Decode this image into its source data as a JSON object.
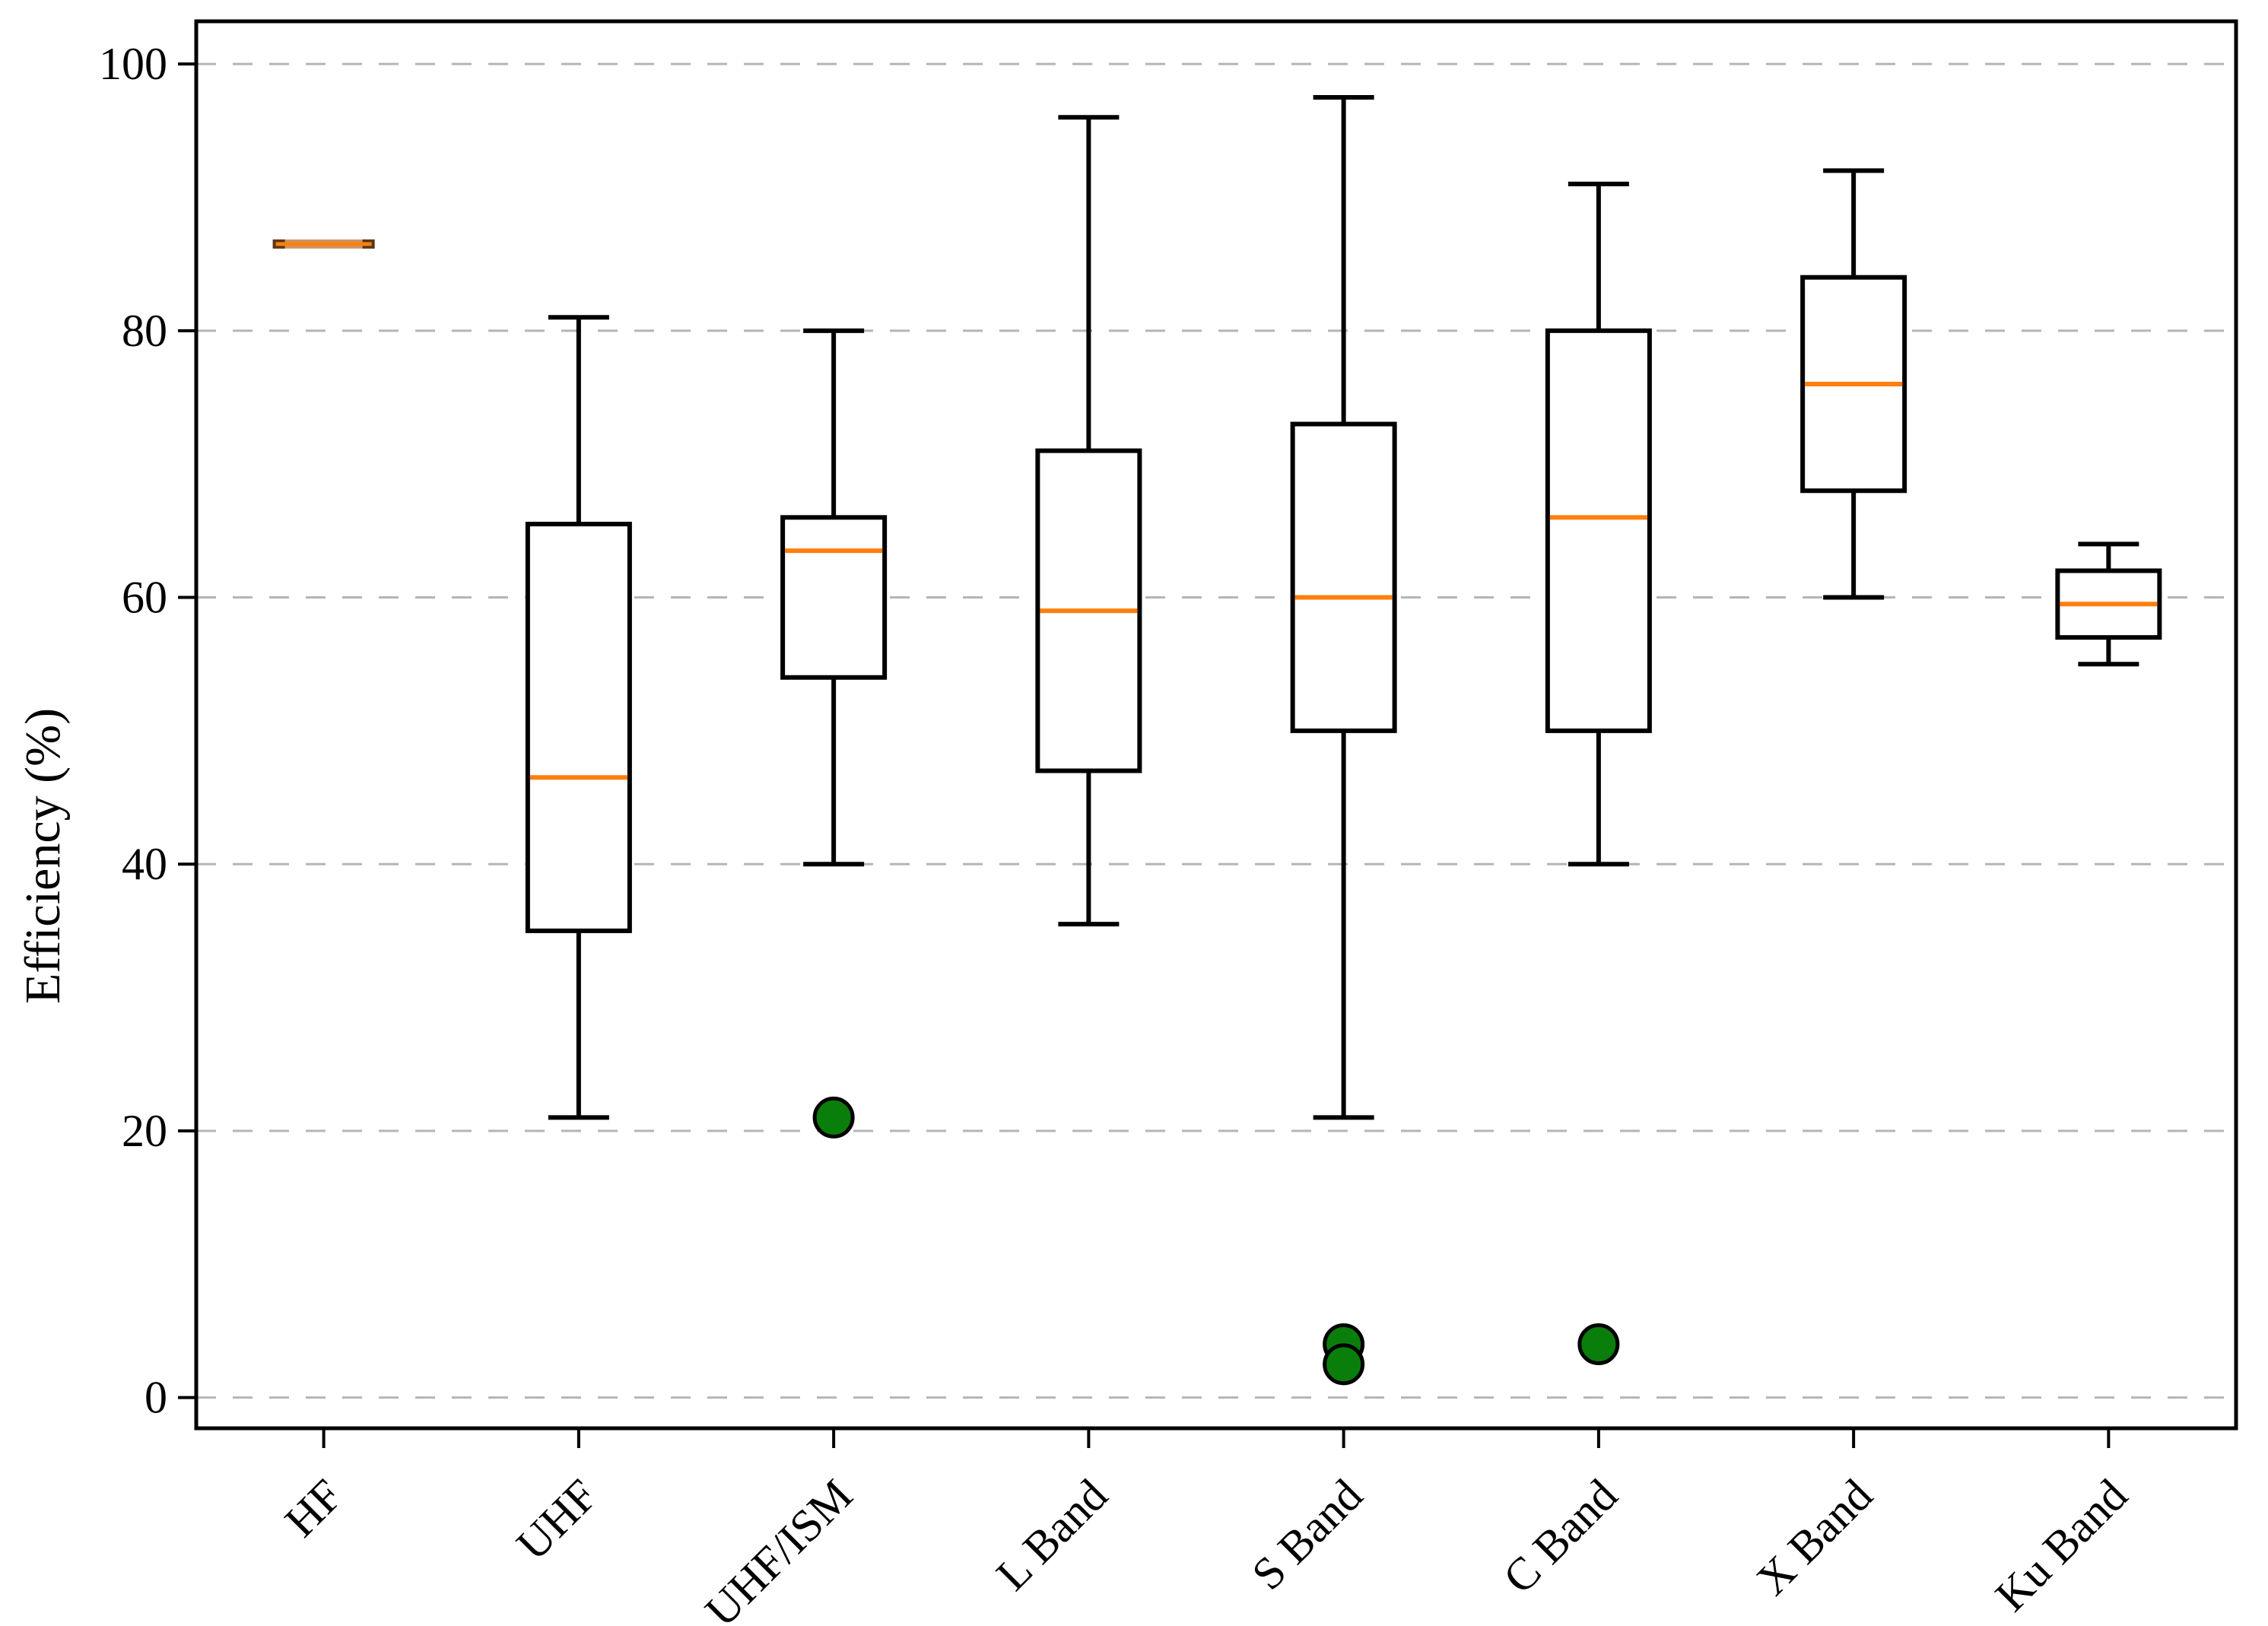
{
  "chart_data": {
    "type": "box",
    "title": "",
    "xlabel": "",
    "ylabel": "Efficiency (%)",
    "ylim": [
      -2.3,
      103.2
    ],
    "yticks": [
      0,
      20,
      40,
      60,
      80,
      100
    ],
    "grid": "dashed horizontal gridlines at each y tick",
    "legend": "none",
    "categories": [
      "HF",
      "UHF",
      "UHF/ISM",
      "L Band",
      "S Band",
      "C Band",
      "X Band",
      "Ku Band"
    ],
    "boxes": [
      {
        "label": "HF",
        "whisker_low": 86.5,
        "q1": 86.5,
        "median": 86.5,
        "q3": 86.5,
        "whisker_high": 86.5,
        "outliers": [],
        "degenerate": true
      },
      {
        "label": "UHF",
        "whisker_low": 21,
        "q1": 35,
        "median": 46.5,
        "q3": 65.5,
        "whisker_high": 81,
        "outliers": []
      },
      {
        "label": "UHF/ISM",
        "whisker_low": 40,
        "q1": 54,
        "median": 63.5,
        "q3": 66,
        "whisker_high": 80,
        "outliers": [
          21
        ]
      },
      {
        "label": "L Band",
        "whisker_low": 35.5,
        "q1": 47,
        "median": 59,
        "q3": 71,
        "whisker_high": 96,
        "outliers": []
      },
      {
        "label": "S Band",
        "whisker_low": 21,
        "q1": 50,
        "median": 60,
        "q3": 73,
        "whisker_high": 97.5,
        "outliers": [
          4,
          2.5
        ]
      },
      {
        "label": "C Band",
        "whisker_low": 40,
        "q1": 50,
        "median": 66,
        "q3": 80,
        "whisker_high": 91,
        "outliers": [
          4
        ]
      },
      {
        "label": "X Band",
        "whisker_low": 60,
        "q1": 68,
        "median": 76,
        "q3": 84,
        "whisker_high": 92,
        "outliers": []
      },
      {
        "label": "Ku Band",
        "whisker_low": 55,
        "q1": 57,
        "median": 59.5,
        "q3": 62,
        "whisker_high": 64,
        "outliers": []
      }
    ],
    "colors": {
      "median_line": "#ff7f0e",
      "box_edge": "#000000",
      "box_fill": "#ffffff",
      "whisker": "#000000",
      "outlier_fill": "#0a7e0a",
      "outlier_edge": "#000000",
      "grid_line": "#b5b5b5",
      "degenerate_box_fill": "#c89669",
      "degenerate_box_ends": "#5a3719",
      "background": "#ffffff"
    }
  }
}
